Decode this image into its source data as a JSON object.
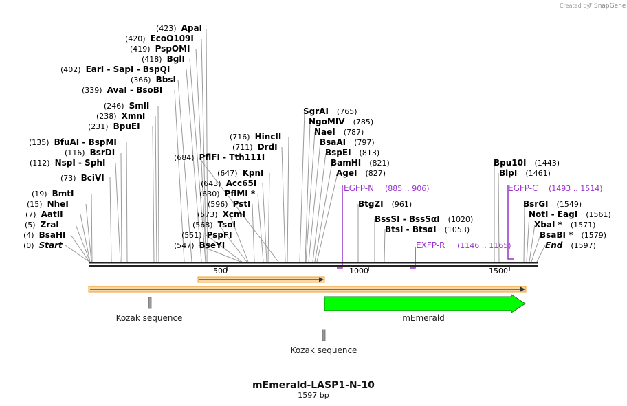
{
  "credit": {
    "created_by": "Created by",
    "brand": "SnapGene"
  },
  "map": {
    "title": "mEmerald-LASP1-N-10",
    "length_label": "1597 bp",
    "total_bp": 1597,
    "ticks": [
      "500",
      "1000",
      "1500"
    ]
  },
  "sites": [
    {
      "pos": "(0)",
      "name": "Start",
      "italic": true
    },
    {
      "pos": "(4)",
      "name": "BsaHI"
    },
    {
      "pos": "(5)",
      "name": "ZraI"
    },
    {
      "pos": "(7)",
      "name": "AatII"
    },
    {
      "pos": "(15)",
      "name": "NheI"
    },
    {
      "pos": "(19)",
      "name": "BmtI"
    },
    {
      "pos": "(73)",
      "name": "BciVI"
    },
    {
      "pos": "(112)",
      "name": "NspI",
      "sep": "-",
      "name2": "SphI"
    },
    {
      "pos": "(116)",
      "name": "BsrDI"
    },
    {
      "pos": "(135)",
      "name": "BfuAI",
      "sep": "-",
      "name2": "BspMI"
    },
    {
      "pos": "(231)",
      "name": "BpuEI"
    },
    {
      "pos": "(238)",
      "name": "XmnI"
    },
    {
      "pos": "(246)",
      "name": "SmlI"
    },
    {
      "pos": "(339)",
      "name": "AvaI",
      "sep": "-",
      "name2": "BsoBI"
    },
    {
      "pos": "(366)",
      "name": "BbsI"
    },
    {
      "pos": "(402)",
      "name": "EarI",
      "sep": "-",
      "name2": "SapI",
      "sep2": "-",
      "name3": "BspQI"
    },
    {
      "pos": "(418)",
      "name": "BglI"
    },
    {
      "pos": "(419)",
      "name": "PspOMI"
    },
    {
      "pos": "(420)",
      "name": "EcoO109I"
    },
    {
      "pos": "(423)",
      "name": "ApaI"
    },
    {
      "pos": "(547)",
      "name": "BseYI"
    },
    {
      "pos": "(551)",
      "name": "PspFI"
    },
    {
      "pos": "(568)",
      "name": "TsoI"
    },
    {
      "pos": "(573)",
      "name": "XcmI"
    },
    {
      "pos": "(596)",
      "name": "PstI"
    },
    {
      "pos": "(630)",
      "name": "PflMI *"
    },
    {
      "pos": "(643)",
      "name": "Acc65I"
    },
    {
      "pos": "(647)",
      "name": "KpnI"
    },
    {
      "pos": "(684)",
      "name": "PflFI",
      "sep": "-",
      "name2": "Tth111I"
    },
    {
      "pos": "(711)",
      "name": "DrdI"
    },
    {
      "pos": "(716)",
      "name": "HincII"
    },
    {
      "pos": "(765)",
      "name": "SgrAI"
    },
    {
      "pos": "(785)",
      "name": "NgoMIV"
    },
    {
      "pos": "(787)",
      "name": "NaeI"
    },
    {
      "pos": "(797)",
      "name": "BsaAI"
    },
    {
      "pos": "(813)",
      "name": "BspEI"
    },
    {
      "pos": "(821)",
      "name": "BamHI"
    },
    {
      "pos": "(827)",
      "name": "AgeI"
    },
    {
      "pos": "(961)",
      "name": "BtgZI"
    },
    {
      "pos": "(1020)",
      "name": "BssSI",
      "sep": "-",
      "name2": "BssSαI"
    },
    {
      "pos": "(1053)",
      "name": "BtsI",
      "sep": "-",
      "name2": "BtsαI"
    },
    {
      "pos": "(1443)",
      "name": "Bpu10I"
    },
    {
      "pos": "(1461)",
      "name": "BlpI"
    },
    {
      "pos": "(1549)",
      "name": "BsrGI"
    },
    {
      "pos": "(1561)",
      "name": "NotI",
      "sep": "-",
      "name2": "EagI"
    },
    {
      "pos": "(1571)",
      "name": "XbaI *"
    },
    {
      "pos": "(1579)",
      "name": "BsaBI *"
    },
    {
      "pos": "(1597)",
      "name": "End",
      "italic": true
    }
  ],
  "primers": [
    {
      "name": "EGFP-N",
      "range": "(885 .. 906)"
    },
    {
      "name": "EXFP-R",
      "range": "(1146 .. 1165)"
    },
    {
      "name": "EGFP-C",
      "range": "(1493 .. 1514)"
    }
  ],
  "features": [
    {
      "name": "Kozak sequence",
      "start": 224,
      "end": 233
    },
    {
      "name": "mEmerald",
      "start": 843,
      "end": 1560,
      "color": "#00ff00"
    },
    {
      "name": "Kozak sequence",
      "start": 835,
      "end": 844
    }
  ],
  "colors": {
    "primer": "#9933cc",
    "orf_fill": "#f5d7a8",
    "orf_border": "#f0a030",
    "mEmerald": "#00ff00",
    "backbone": "#222222"
  }
}
